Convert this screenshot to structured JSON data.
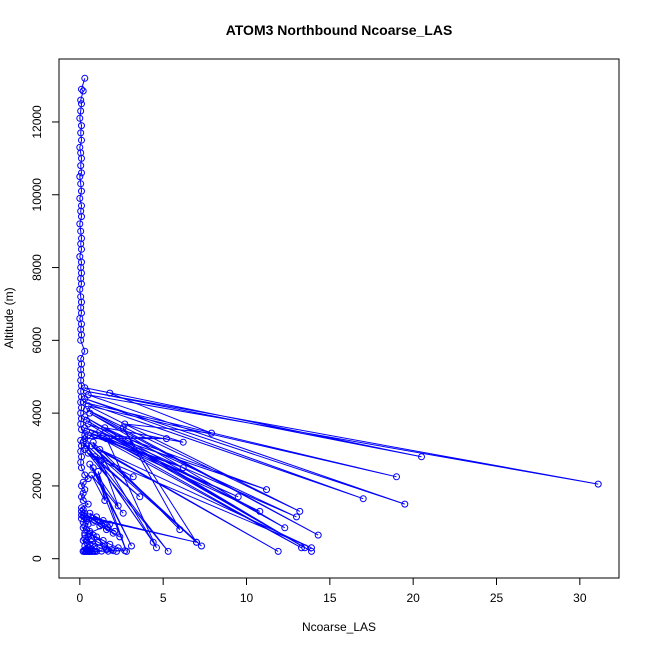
{
  "chart_data": {
    "type": "line",
    "title": "ATOM3 Northbound Ncoarse_LAS",
    "xlabel": "Ncoarse_LAS",
    "ylabel": "Altitude (m)",
    "xlim": [
      -1.25,
      32.35
    ],
    "ylim": [
      -530,
      13730
    ],
    "xticks": [
      0,
      5,
      10,
      15,
      20,
      25,
      30
    ],
    "xtick_labels": [
      "0",
      "5",
      "10",
      "15",
      "20",
      "25",
      "30"
    ],
    "yticks": [
      0,
      2000,
      4000,
      6000,
      8000,
      10000,
      12000
    ],
    "ytick_labels": [
      "0",
      "2000",
      "4000",
      "6000",
      "8000",
      "10000",
      "12000"
    ],
    "grid": false,
    "series_color": "#0000ff",
    "marker": "open-circle",
    "series": [
      {
        "x": [
          0.3,
          0.1,
          0.2,
          0.05,
          0.1,
          0.05,
          0.0,
          0.1,
          0.05,
          0.1,
          0.0,
          0.05,
          0.1,
          0.05,
          0.1,
          0.0,
          0.05,
          0.1,
          0.0,
          0.1,
          0.05,
          0.1,
          0.0,
          0.05,
          0.1,
          0.05,
          0.1,
          0.0,
          0.1,
          0.05,
          0.1,
          0.05,
          0.1,
          0.0,
          0.05,
          0.1,
          0.05,
          0.1,
          0.0,
          0.1,
          0.05,
          0.1,
          0.05,
          0.3,
          0.05,
          0.1,
          0.05,
          0.1,
          0.05,
          0.1,
          0.05,
          0.1,
          0.05,
          0.1,
          0.05,
          0.1,
          0.05,
          0.1,
          0.3,
          0.05,
          0.1,
          0.05,
          0.1,
          0.05,
          0.1,
          0.3,
          0.5,
          0.2,
          0.1,
          0.3,
          0.2,
          0.1,
          0.2,
          0.5,
          0.1,
          0.2,
          0.1,
          0.3,
          0.1,
          7.0,
          0.3,
          0.1,
          0.4,
          0.2,
          0.5,
          0.3,
          0.2,
          0.4,
          0.6,
          0.3,
          0.8,
          0.5,
          0.3,
          0.2,
          0.4,
          0.6,
          0.3,
          0.5,
          0.7,
          0.4,
          0.3,
          0.5,
          0.8,
          0.6,
          0.4,
          0.2,
          0.3,
          0.5,
          0.4,
          0.7,
          0.9,
          0.6,
          0.3,
          0.5,
          0.8,
          1.0,
          0.7,
          0.5,
          0.4,
          0.6,
          0.3,
          0.2
        ],
        "y": [
          13200,
          12900,
          12850,
          12600,
          12500,
          12300,
          12100,
          11900,
          11700,
          11500,
          11300,
          11150,
          11000,
          10800,
          10600,
          10500,
          10300,
          10100,
          9900,
          9700,
          9550,
          9400,
          9200,
          9000,
          8800,
          8650,
          8500,
          8300,
          8150,
          8000,
          7850,
          7700,
          7550,
          7400,
          7200,
          7050,
          6900,
          6750,
          6600,
          6450,
          6300,
          6150,
          6000,
          5700,
          5500,
          5350,
          5200,
          5050,
          4900,
          4750,
          4600,
          4450,
          4300,
          4150,
          4000,
          3850,
          3700,
          3550,
          3400,
          3250,
          3100,
          2950,
          2800,
          2650,
          2500,
          2300,
          2200,
          2100,
          2000,
          1900,
          1800,
          1700,
          1600,
          1500,
          1400,
          1350,
          1300,
          1250,
          1200,
          450,
          1150,
          1100,
          1050,
          1000,
          950,
          900,
          850,
          800,
          750,
          700,
          650,
          600,
          550,
          500,
          450,
          400,
          350,
          300,
          280,
          260,
          240,
          230,
          220,
          215,
          210,
          205,
          200,
          200,
          200,
          200,
          200,
          200,
          200,
          200,
          200,
          200,
          200,
          200,
          200,
          200,
          200,
          200
        ]
      },
      {
        "x": [
          0.3,
          20.5,
          0.4,
          31.1,
          0.5,
          19.5,
          0.3,
          17.0,
          0.2,
          19.0,
          0.5,
          13.2,
          0.4,
          14.3,
          0.6,
          12.3,
          0.3,
          13.5,
          0.4,
          13.9,
          0.5,
          11.2,
          0.3,
          9.5,
          0.4,
          6.2,
          0.5,
          5.2,
          0.3,
          7.3,
          0.2,
          4.4,
          0.4,
          5.3,
          0.3
        ],
        "y": [
          4700,
          2800,
          4600,
          2050,
          4500,
          1500,
          4400,
          1650,
          4300,
          2250,
          4200,
          1300,
          4100,
          650,
          4000,
          850,
          3900,
          300,
          3800,
          200,
          3700,
          1900,
          3600,
          1700,
          3500,
          2500,
          3400,
          3300,
          3300,
          350,
          3200,
          450,
          3100,
          200,
          3000
        ]
      },
      {
        "x": [
          1.8,
          7.9,
          2.7,
          6.2,
          1.5,
          13.0,
          1.2,
          10.8,
          0.9,
          13.3,
          1.6,
          4.6,
          0.8,
          6.0,
          2.6,
          7.0,
          0.7,
          11.9,
          1.2,
          13.9,
          0.5,
          3.6,
          0.9,
          3.2,
          1.3,
          2.3,
          0.6,
          3.1,
          0.8,
          2.8,
          1.1,
          1.5,
          0.7,
          2.6
        ],
        "y": [
          4550,
          3450,
          3700,
          3200,
          3600,
          1150,
          3500,
          1300,
          3400,
          300,
          3300,
          300,
          3200,
          800,
          3600,
          450,
          3100,
          200,
          3000,
          300,
          2900,
          1700,
          2800,
          2250,
          2700,
          1450,
          2600,
          350,
          2500,
          200,
          2400,
          1600,
          2300,
          1250
        ]
      },
      {
        "x": [
          0.2,
          0.4,
          0.8,
          1.2,
          1.6,
          2.0,
          2.4,
          0.5,
          0.9,
          1.3,
          1.7,
          2.1,
          0.6,
          1.0,
          1.4,
          1.8,
          0.3,
          0.7,
          1.1,
          1.5,
          1.9,
          2.2,
          0.4,
          0.8,
          1.2,
          1.6,
          2.0,
          0.6,
          1.0,
          1.4,
          1.8,
          2.3,
          2.7,
          0.9,
          1.3,
          1.7
        ],
        "y": [
          1200,
          1100,
          1000,
          900,
          800,
          700,
          600,
          1150,
          1050,
          950,
          850,
          750,
          1250,
          1150,
          1050,
          950,
          650,
          550,
          450,
          350,
          250,
          200,
          500,
          400,
          300,
          250,
          220,
          700,
          600,
          500,
          400,
          300,
          220,
          200,
          210,
          205
        ]
      }
    ]
  }
}
